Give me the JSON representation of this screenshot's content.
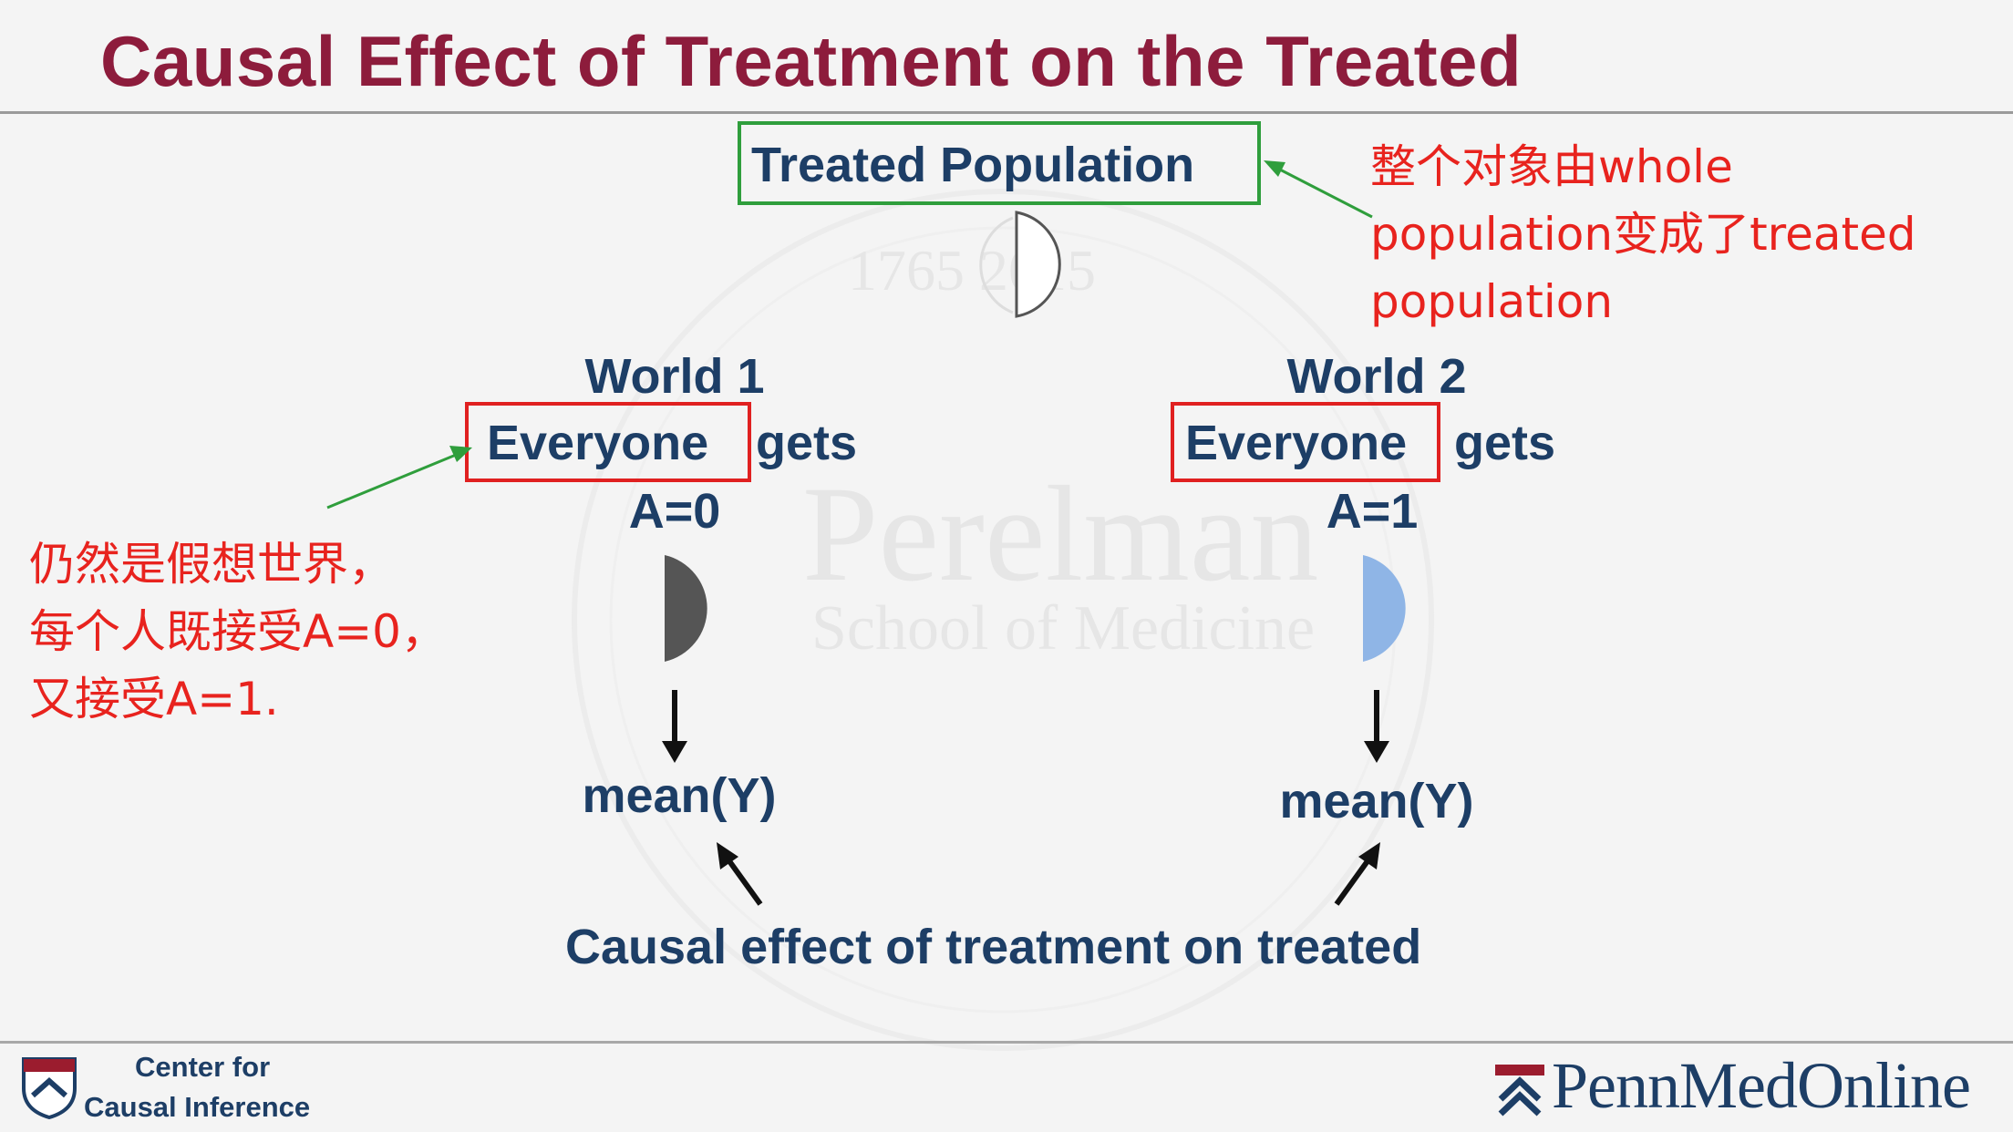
{
  "slide": {
    "title": "Causal Effect of Treatment on the Treated"
  },
  "diagram": {
    "treated_population": "Treated Population",
    "world1": {
      "title": "World 1",
      "boxed": "Everyone",
      "rest": "gets",
      "treatment": "A=0",
      "outcome": "mean(Y)"
    },
    "world2": {
      "title": "World 2",
      "boxed": "Everyone",
      "rest": "gets",
      "treatment": "A=1",
      "outcome": "mean(Y)"
    },
    "caption": "Causal effect of treatment on treated"
  },
  "annotations": {
    "top_right": [
      "整个对象由whole",
      "population变成了treated",
      "population"
    ],
    "left": [
      "仍然是假想世界，",
      "每个人既接受A=0，",
      "又接受A=1."
    ]
  },
  "watermark": {
    "years": "1765 2015",
    "name": "Perelman",
    "subtitle": "School of Medicine"
  },
  "footer": {
    "left_line1": "Center for",
    "left_line2": "Causal Inference",
    "right_brand": "PennMedOnline"
  },
  "colors": {
    "title": "#8d1c3c",
    "text_blue": "#1d3e66",
    "annotation_red": "#e8231e",
    "box_green": "#2f9e3c",
    "box_red": "#e02020",
    "half_circle_gray": "#555555",
    "half_circle_blue": "#8fb5e6"
  }
}
